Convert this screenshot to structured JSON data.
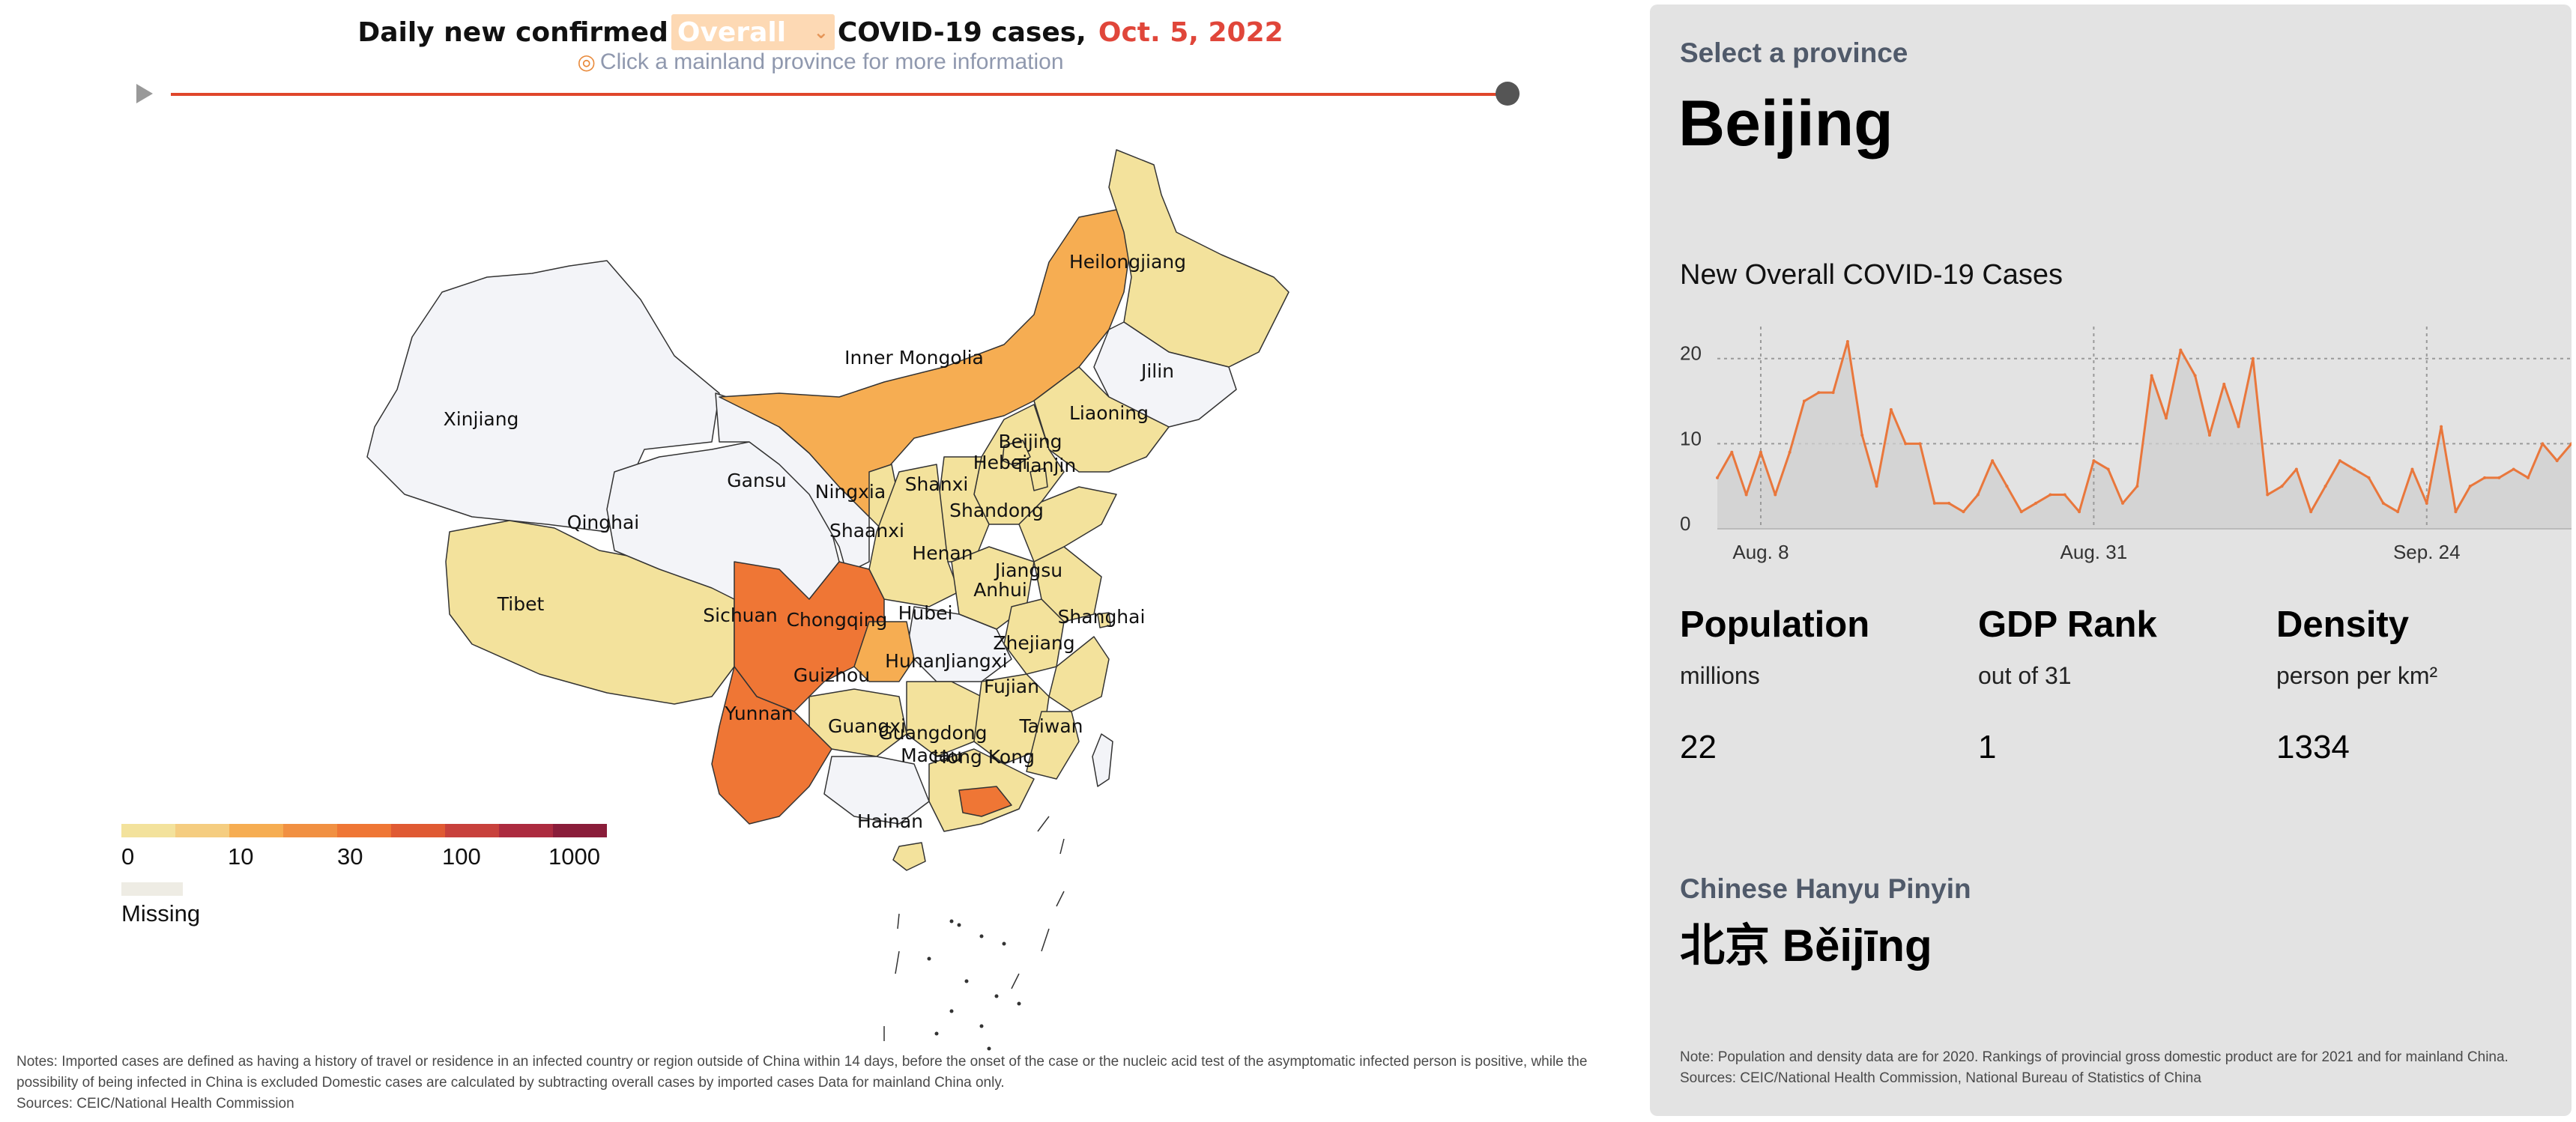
{
  "header": {
    "title_before": "Daily new confirmed",
    "dropdown_value": "Overall",
    "title_after": "COVID-19 cases,",
    "date": "Oct. 5, 2022",
    "hint": "Click a mainland province for more information"
  },
  "map": {
    "labels": [
      "Heilongjiang",
      "Inner Mongolia",
      "Jilin",
      "Liaoning",
      "Xinjiang",
      "Beijing",
      "Tianjin",
      "Hebei",
      "Gansu",
      "Ningxia",
      "Shanxi",
      "Qinghai",
      "Shandong",
      "Shaanxi",
      "Henan",
      "Jiangsu",
      "Tibet",
      "Anhui",
      "Sichuan",
      "Chongqing",
      "Hubei",
      "Shanghai",
      "Zhejiang",
      "Hunan",
      "Jiangxi",
      "Guizhou",
      "Fujian",
      "Yunnan",
      "Taiwan",
      "Guangxi",
      "Guangdong",
      "Macau",
      "Hong Kong",
      "Hainan"
    ],
    "colors": {
      "light": "#f3e29c",
      "mid": "#f6ad52",
      "high": "#ef7635",
      "none": "#f3f4f8"
    }
  },
  "legend": {
    "colors": [
      "#f3e29c",
      "#f5cd80",
      "#f6ad52",
      "#f19042",
      "#ef7635",
      "#e05a33",
      "#c8413c",
      "#ac2b3f",
      "#8a1d3a"
    ],
    "ticks": [
      "0",
      "10",
      "30",
      "100",
      "1000"
    ],
    "missing_label": "Missing",
    "missing_color": "#eeece4"
  },
  "left_notes": {
    "line1": "Notes: Imported cases are defined as having a history of travel or residence in an infected country or region outside of China within 14 days, before the onset of the case or the nucleic acid test of the asymptomatic infected person is positive, while the possibility of being infected in China is excluded Domestic cases are calculated by subtracting overall cases by imported cases Data for mainland China only.",
    "line2": "Sources: CEIC/National Health Commission"
  },
  "panel": {
    "select_label": "Select a province",
    "province": "Beijing",
    "chart_title": "New Overall COVID-19 Cases",
    "stats": [
      {
        "heading": "Population",
        "unit": "millions",
        "value": "22"
      },
      {
        "heading": "GDP Rank",
        "unit": "out of 31",
        "value": "1"
      },
      {
        "heading": "Density",
        "unit": "person per km²",
        "value": "1334"
      }
    ],
    "pinyin_label": "Chinese Hanyu Pinyin",
    "pinyin": "北京 Běijīng",
    "notes_line1": "Note: Population and density data are for 2020. Rankings of provincial gross domestic product are for 2021 and for mainland China.",
    "notes_line2": "Sources: CEIC/National Health Commission, National Bureau of Statistics of China"
  },
  "chart_data": {
    "type": "area",
    "title": "New Overall COVID-19 Cases",
    "x_tick_labels": [
      "Aug. 8",
      "Aug. 31",
      "Sep. 24"
    ],
    "x_tick_indices": [
      3,
      26,
      49
    ],
    "y_ticks": [
      0,
      10,
      20
    ],
    "ylim": [
      0,
      22
    ],
    "color": "#e9773c",
    "series": [
      {
        "values": [
          6,
          9,
          4,
          9,
          4,
          9,
          15,
          16,
          16,
          22,
          11,
          5,
          14,
          10,
          10,
          3,
          3,
          2,
          4,
          8,
          5,
          2,
          3,
          4,
          4,
          2,
          8,
          7,
          3,
          5,
          18,
          13,
          21,
          18,
          11,
          17,
          12,
          20,
          4,
          5,
          7,
          2,
          5,
          8,
          7,
          6,
          3,
          2,
          7,
          3,
          12,
          2,
          5,
          6,
          6,
          7,
          6,
          10,
          8,
          10
        ]
      }
    ]
  }
}
